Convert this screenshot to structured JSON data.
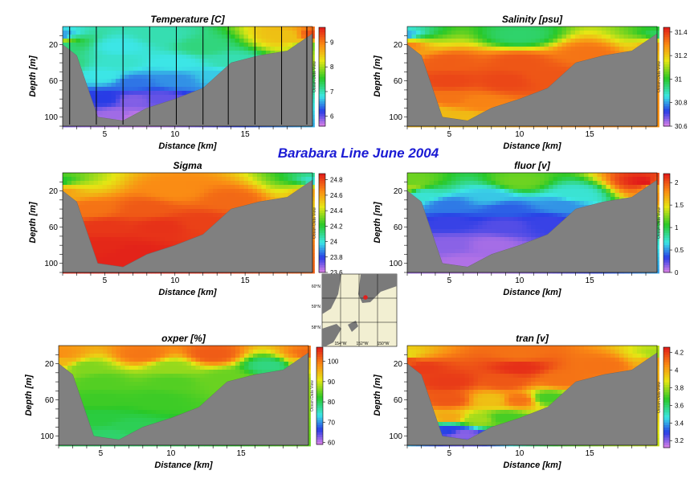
{
  "figure_title": "Barabara Line   June 2004",
  "colors": {
    "title": "#1a1ad4",
    "bathymetry": "#808080"
  },
  "colorbar_side_label": "Ocean Data View",
  "map": {
    "lat_labels": [
      "60°N",
      "59°N",
      "58°N"
    ],
    "lon_labels": [
      "154°W",
      "152°W",
      "150°W"
    ]
  },
  "chart_data": [
    {
      "type": "heatmap",
      "title": "Temperature [C]",
      "xlabel": "Distance [km]",
      "ylabel": "Depth [m]",
      "xlim": [
        2,
        19.8
      ],
      "ylim": [
        0,
        110
      ],
      "x_ticks": [
        5,
        10,
        15
      ],
      "y_ticks": [
        20,
        60,
        100
      ],
      "colorbar": {
        "min": 5.6,
        "max": 9.6,
        "ticks": [
          6,
          7,
          8,
          9
        ]
      },
      "station_lines": [
        2.5,
        4.4,
        6.3,
        8.2,
        10.1,
        12,
        13.8,
        15.7,
        17.6,
        19.4
      ],
      "profile_top": [
        [
          2,
          10,
          6.5
        ],
        [
          9,
          10,
          7.0
        ],
        [
          18,
          10,
          8.5
        ],
        [
          19.8,
          10,
          9.3
        ],
        [
          2,
          14,
          8.0
        ],
        [
          19.8,
          14,
          8.6
        ],
        [
          2,
          20,
          7.2
        ],
        [
          6,
          22,
          6.8
        ],
        [
          12,
          22,
          7.2
        ],
        [
          19.8,
          20,
          7.8
        ],
        [
          2,
          40,
          7.2
        ],
        [
          6,
          40,
          6.9
        ],
        [
          10,
          40,
          6.8
        ],
        [
          14,
          38,
          7.0
        ],
        [
          5,
          55,
          6.8
        ],
        [
          7,
          62,
          6.4
        ],
        [
          10,
          60,
          6.5
        ],
        [
          13,
          55,
          6.7
        ],
        [
          5,
          80,
          6.2
        ],
        [
          7,
          82,
          5.9
        ],
        [
          9,
          80,
          6.0
        ],
        [
          6,
          98,
          5.8
        ],
        [
          7,
          100,
          5.7
        ]
      ],
      "bottom_depth": [
        [
          2,
          20
        ],
        [
          3,
          32
        ],
        [
          4.5,
          100
        ],
        [
          6.3,
          104
        ],
        [
          8,
          90
        ],
        [
          10,
          80
        ],
        [
          12,
          68
        ],
        [
          14,
          40
        ],
        [
          16,
          32
        ],
        [
          18,
          27
        ],
        [
          19.8,
          8
        ]
      ]
    },
    {
      "type": "heatmap",
      "title": "Salinity [psu]",
      "xlabel": "Distance [km]",
      "ylabel": "Depth [m]",
      "xlim": [
        2,
        19.8
      ],
      "ylim": [
        0,
        110
      ],
      "x_ticks": [
        5,
        10,
        15
      ],
      "y_ticks": [
        20,
        60,
        100
      ],
      "colorbar": {
        "min": 30.6,
        "max": 31.44,
        "ticks": [
          30.6,
          30.8,
          31,
          31.2,
          31.4
        ]
      },
      "profile_top": [
        [
          2,
          10,
          30.8
        ],
        [
          19.8,
          10,
          30.95
        ],
        [
          10,
          10,
          30.95
        ],
        [
          2,
          14,
          31.15
        ],
        [
          19.8,
          14,
          31.15
        ],
        [
          2,
          20,
          31.3
        ],
        [
          19.8,
          20,
          31.25
        ],
        [
          5,
          40,
          31.35
        ],
        [
          10,
          40,
          31.36
        ],
        [
          15,
          30,
          31.32
        ],
        [
          5,
          60,
          31.38
        ],
        [
          9,
          60,
          31.38
        ],
        [
          12,
          55,
          31.36
        ],
        [
          5,
          80,
          31.32
        ],
        [
          7,
          85,
          31.3
        ],
        [
          4,
          95,
          31.22
        ],
        [
          6,
          100,
          31.22
        ]
      ],
      "bottom_depth": [
        [
          2,
          20
        ],
        [
          3,
          32
        ],
        [
          4.5,
          100
        ],
        [
          6.3,
          104
        ],
        [
          8,
          90
        ],
        [
          10,
          80
        ],
        [
          12,
          68
        ],
        [
          14,
          40
        ],
        [
          16,
          32
        ],
        [
          18,
          27
        ],
        [
          19.8,
          8
        ]
      ]
    },
    {
      "type": "heatmap",
      "title": "Sigma",
      "xlabel": "Distance [km]",
      "ylabel": "Depth [m]",
      "xlim": [
        2,
        19.8
      ],
      "ylim": [
        0,
        110
      ],
      "x_ticks": [
        5,
        10,
        15
      ],
      "y_ticks": [
        20,
        60,
        100
      ],
      "colorbar": {
        "min": 23.6,
        "max": 24.88,
        "ticks": [
          23.6,
          23.8,
          24,
          24.2,
          24.4,
          24.6,
          24.8
        ]
      },
      "profile_top": [
        [
          2,
          10,
          24.2
        ],
        [
          19.8,
          10,
          24.0
        ],
        [
          2,
          14,
          24.5
        ],
        [
          19.8,
          14,
          24.4
        ],
        [
          2,
          20,
          24.6
        ],
        [
          10,
          20,
          24.65
        ],
        [
          19.8,
          20,
          24.6
        ],
        [
          4,
          40,
          24.7
        ],
        [
          8,
          40,
          24.75
        ],
        [
          14,
          30,
          24.72
        ],
        [
          5,
          60,
          24.82
        ],
        [
          9,
          60,
          24.83
        ],
        [
          12,
          55,
          24.8
        ],
        [
          5,
          80,
          24.85
        ],
        [
          7,
          88,
          24.86
        ],
        [
          6,
          100,
          24.86
        ]
      ],
      "bottom_depth": [
        [
          2,
          20
        ],
        [
          3,
          32
        ],
        [
          4.5,
          100
        ],
        [
          6.3,
          104
        ],
        [
          8,
          90
        ],
        [
          10,
          80
        ],
        [
          12,
          68
        ],
        [
          14,
          40
        ],
        [
          16,
          32
        ],
        [
          18,
          27
        ],
        [
          19.8,
          8
        ]
      ]
    },
    {
      "type": "heatmap",
      "title": "fluor [v]",
      "xlabel": "Distance [km]",
      "ylabel": "Depth [m]",
      "xlim": [
        2,
        19.8
      ],
      "ylim": [
        0,
        110
      ],
      "x_ticks": [
        5,
        10,
        15
      ],
      "y_ticks": [
        20,
        60,
        100
      ],
      "colorbar": {
        "min": 0,
        "max": 2.2,
        "ticks": [
          0,
          0.5,
          1,
          1.5,
          2
        ]
      },
      "profile_top": [
        [
          2,
          10,
          1.2
        ],
        [
          10,
          10,
          1.2
        ],
        [
          19,
          10,
          2.2
        ],
        [
          19.8,
          10,
          2.0
        ],
        [
          2,
          16,
          1.3
        ],
        [
          19.8,
          16,
          1.7
        ],
        [
          3,
          24,
          0.7
        ],
        [
          8,
          26,
          0.6
        ],
        [
          14,
          24,
          0.7
        ],
        [
          5,
          36,
          0.45
        ],
        [
          9,
          40,
          0.4
        ],
        [
          13,
          36,
          0.5
        ],
        [
          5,
          55,
          0.3
        ],
        [
          9,
          58,
          0.25
        ],
        [
          12,
          55,
          0.3
        ],
        [
          5,
          80,
          0.15
        ],
        [
          8,
          80,
          0.1
        ],
        [
          6,
          100,
          0.08
        ]
      ],
      "bottom_depth": [
        [
          2,
          20
        ],
        [
          3,
          32
        ],
        [
          4.5,
          100
        ],
        [
          6.3,
          104
        ],
        [
          8,
          90
        ],
        [
          10,
          80
        ],
        [
          12,
          68
        ],
        [
          14,
          40
        ],
        [
          16,
          32
        ],
        [
          18,
          27
        ],
        [
          19.8,
          8
        ]
      ]
    },
    {
      "type": "heatmap",
      "title": "oxper [%]",
      "xlabel": "Distance [km]",
      "ylabel": "Depth [m]",
      "xlim": [
        2,
        19.8
      ],
      "ylim": [
        0,
        110
      ],
      "x_ticks": [
        5,
        10,
        15
      ],
      "y_ticks": [
        20,
        60,
        100
      ],
      "colorbar": {
        "min": 59,
        "max": 107,
        "ticks": [
          60,
          70,
          80,
          90,
          100
        ]
      },
      "profile_top": [
        [
          2,
          10,
          98
        ],
        [
          8,
          10,
          100
        ],
        [
          13,
          10,
          102
        ],
        [
          19.8,
          10,
          101
        ],
        [
          2,
          16,
          95
        ],
        [
          19.8,
          16,
          93
        ],
        [
          4,
          24,
          86
        ],
        [
          10,
          24,
          87
        ],
        [
          17,
          22,
          78
        ],
        [
          5,
          40,
          84
        ],
        [
          10,
          40,
          84
        ],
        [
          14,
          36,
          85
        ],
        [
          5,
          60,
          83
        ],
        [
          9,
          60,
          83
        ],
        [
          5,
          80,
          81
        ],
        [
          7,
          90,
          80
        ],
        [
          6,
          100,
          79
        ]
      ],
      "bottom_depth": [
        [
          2,
          20
        ],
        [
          3,
          32
        ],
        [
          4.5,
          100
        ],
        [
          6.3,
          104
        ],
        [
          8,
          90
        ],
        [
          10,
          80
        ],
        [
          12,
          68
        ],
        [
          14,
          40
        ],
        [
          16,
          32
        ],
        [
          18,
          27
        ],
        [
          19.8,
          8
        ]
      ]
    },
    {
      "type": "heatmap",
      "title": "tran [v]",
      "xlabel": "Distance [km]",
      "ylabel": "Depth [m]",
      "xlim": [
        2,
        19.8
      ],
      "ylim": [
        0,
        110
      ],
      "x_ticks": [
        5,
        10,
        15
      ],
      "y_ticks": [
        20,
        60,
        100
      ],
      "colorbar": {
        "min": 3.12,
        "max": 4.26,
        "ticks": [
          3.2,
          3.4,
          3.6,
          3.8,
          4,
          4.2
        ]
      },
      "profile_top": [
        [
          2,
          10,
          3.9
        ],
        [
          10,
          10,
          4.1
        ],
        [
          19.8,
          10,
          3.8
        ],
        [
          2,
          16,
          4.15
        ],
        [
          19.8,
          16,
          4.0
        ],
        [
          3,
          24,
          4.2
        ],
        [
          10,
          24,
          4.22
        ],
        [
          16,
          22,
          4.1
        ],
        [
          5,
          40,
          4.2
        ],
        [
          9,
          40,
          4.15
        ],
        [
          13,
          38,
          4.1
        ],
        [
          5,
          60,
          4.15
        ],
        [
          8,
          60,
          3.95
        ],
        [
          10,
          60,
          4.1
        ],
        [
          12,
          58,
          3.7
        ],
        [
          5,
          80,
          4.0
        ],
        [
          7,
          82,
          3.8
        ],
        [
          9,
          80,
          3.7
        ],
        [
          5,
          92,
          3.3
        ],
        [
          6,
          98,
          3.2
        ]
      ],
      "bottom_depth": [
        [
          2,
          20
        ],
        [
          3,
          32
        ],
        [
          4.5,
          100
        ],
        [
          6.3,
          104
        ],
        [
          8,
          90
        ],
        [
          10,
          80
        ],
        [
          12,
          68
        ],
        [
          14,
          40
        ],
        [
          16,
          32
        ],
        [
          18,
          27
        ],
        [
          19.8,
          8
        ]
      ]
    }
  ]
}
